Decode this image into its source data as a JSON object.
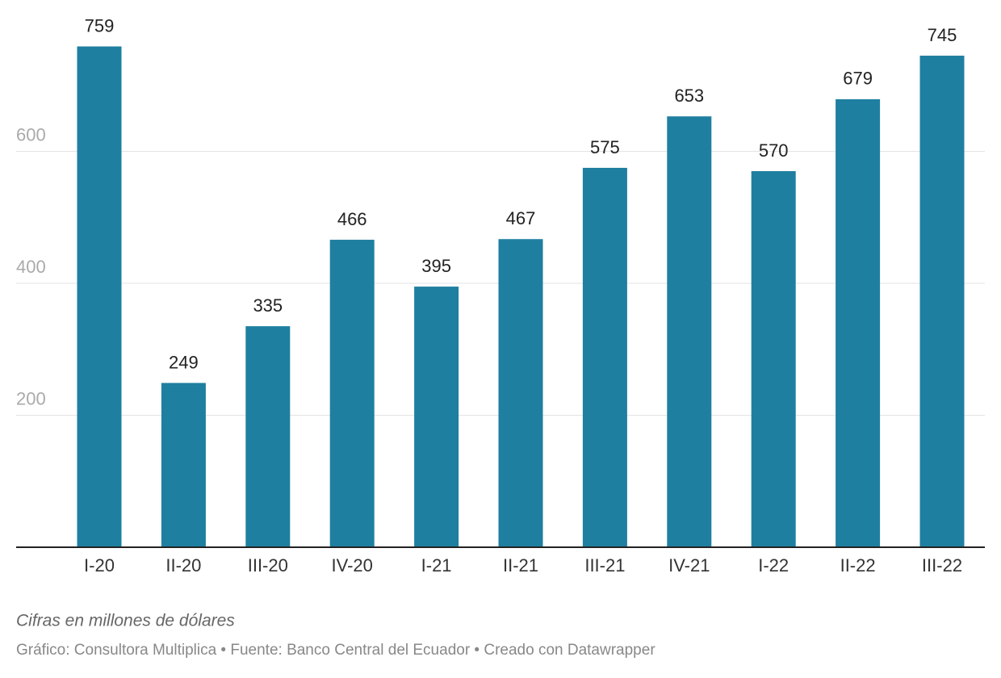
{
  "chart_data": {
    "type": "bar",
    "note": "Cifras en millones de dólares",
    "source": "Gráfico: Consultora Multiplica • Fuente: Banco Central del Ecuador • Creado con Datawrapper",
    "categories": [
      "I-20",
      "II-20",
      "III-20",
      "IV-20",
      "I-21",
      "II-21",
      "III-21",
      "IV-21",
      "I-22",
      "II-22",
      "III-22"
    ],
    "values": [
      759,
      249,
      335,
      466,
      395,
      467,
      575,
      653,
      570,
      679,
      745
    ],
    "color": "#1f7fa0",
    "ylim": [
      0,
      800
    ],
    "yticks": [
      200,
      400,
      600
    ],
    "grid": true
  }
}
